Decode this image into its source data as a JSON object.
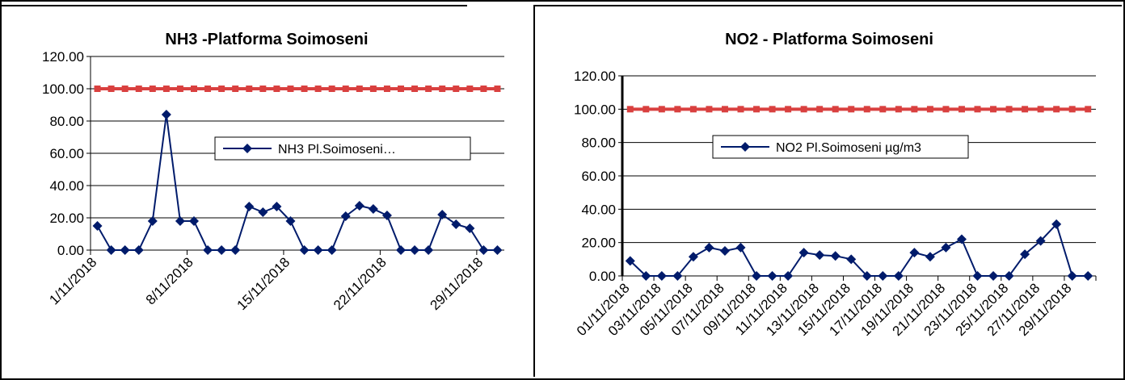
{
  "colors": {
    "series": "#001b6b",
    "limit": "#d9403f",
    "grid": "#000000"
  },
  "chart_data": [
    {
      "type": "line",
      "title": "NH3 -Platforma Soimoseni",
      "xlabel": "",
      "ylabel": "",
      "ylim": [
        0,
        120
      ],
      "y_ticks": [
        "0.00",
        "20.00",
        "40.00",
        "60.00",
        "80.00",
        "100.00",
        "120.00"
      ],
      "x_tick_labels": [
        "1/11/2018",
        "8/11/2018",
        "15/11/2018",
        "22/11/2018",
        "29/11/2018"
      ],
      "grid": true,
      "legend": "center-right",
      "series": [
        {
          "name": "NH3 Pl.Soimoseni…",
          "x": [
            "1/11/2018",
            "2/11/2018",
            "3/11/2018",
            "4/11/2018",
            "5/11/2018",
            "6/11/2018",
            "7/11/2018",
            "8/11/2018",
            "9/11/2018",
            "10/11/2018",
            "11/11/2018",
            "12/11/2018",
            "13/11/2018",
            "14/11/2018",
            "15/11/2018",
            "16/11/2018",
            "17/11/2018",
            "18/11/2018",
            "19/11/2018",
            "20/11/2018",
            "21/11/2018",
            "22/11/2018",
            "23/11/2018",
            "24/11/2018",
            "25/11/2018",
            "26/11/2018",
            "27/11/2018",
            "28/11/2018",
            "29/11/2018",
            "30/11/2018"
          ],
          "values": [
            15,
            0,
            0,
            0,
            18,
            84,
            18,
            18,
            0,
            0,
            0,
            27,
            23.5,
            27,
            18,
            0,
            0,
            0,
            21,
            27.5,
            25.5,
            21.5,
            0,
            0,
            0,
            22,
            16,
            13.5,
            0,
            0
          ]
        },
        {
          "name": "",
          "values": [
            100,
            100,
            100,
            100,
            100,
            100,
            100,
            100,
            100,
            100,
            100,
            100,
            100,
            100,
            100,
            100,
            100,
            100,
            100,
            100,
            100,
            100,
            100,
            100,
            100,
            100,
            100,
            100,
            100,
            100
          ]
        }
      ]
    },
    {
      "type": "line",
      "title": "NO2 - Platforma Soimoseni",
      "xlabel": "",
      "ylabel": "",
      "ylim": [
        0,
        120
      ],
      "y_ticks": [
        "0.00",
        "20.00",
        "40.00",
        "60.00",
        "80.00",
        "100.00",
        "120.00"
      ],
      "x_tick_labels": [
        "01/11/2018",
        "03/11/2018",
        "05/11/2018",
        "07/11/2018",
        "09/11/2018",
        "11/11/2018",
        "13/11/2018",
        "15/11/2018",
        "17/11/2018",
        "19/11/2018",
        "21/11/2018",
        "23/11/2018",
        "25/11/2018",
        "27/11/2018",
        "29/11/2018"
      ],
      "grid": true,
      "legend": "center-right",
      "series": [
        {
          "name": "NO2 Pl.Soimoseni µg/m3",
          "x": [
            "01/11/2018",
            "02/11/2018",
            "03/11/2018",
            "04/11/2018",
            "05/11/2018",
            "06/11/2018",
            "07/11/2018",
            "08/11/2018",
            "09/11/2018",
            "10/11/2018",
            "11/11/2018",
            "12/11/2018",
            "13/11/2018",
            "14/11/2018",
            "15/11/2018",
            "16/11/2018",
            "17/11/2018",
            "18/11/2018",
            "19/11/2018",
            "20/11/2018",
            "21/11/2018",
            "22/11/2018",
            "23/11/2018",
            "24/11/2018",
            "25/11/2018",
            "26/11/2018",
            "27/11/2018",
            "28/11/2018",
            "29/11/2018",
            "30/11/2018"
          ],
          "values": [
            9,
            0,
            0,
            0,
            11.5,
            17,
            15,
            17,
            0,
            0,
            0,
            14,
            12.5,
            12,
            10,
            0,
            0,
            0,
            14,
            11.5,
            17,
            22,
            0,
            0,
            0,
            13,
            21,
            31,
            0,
            0
          ]
        },
        {
          "name": "",
          "values": [
            100,
            100,
            100,
            100,
            100,
            100,
            100,
            100,
            100,
            100,
            100,
            100,
            100,
            100,
            100,
            100,
            100,
            100,
            100,
            100,
            100,
            100,
            100,
            100,
            100,
            100,
            100,
            100,
            100,
            100
          ]
        }
      ]
    }
  ]
}
